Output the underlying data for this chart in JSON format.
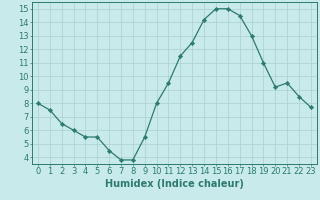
{
  "x": [
    0,
    1,
    2,
    3,
    4,
    5,
    6,
    7,
    8,
    9,
    10,
    11,
    12,
    13,
    14,
    15,
    16,
    17,
    18,
    19,
    20,
    21,
    22,
    23
  ],
  "y": [
    8.0,
    7.5,
    6.5,
    6.0,
    5.5,
    5.5,
    4.5,
    3.8,
    3.8,
    5.5,
    8.0,
    9.5,
    11.5,
    12.5,
    14.2,
    15.0,
    15.0,
    14.5,
    13.0,
    11.0,
    9.2,
    9.5,
    8.5,
    7.7
  ],
  "line_color": "#2d7a6e",
  "marker": "D",
  "marker_size": 2.2,
  "bg_color": "#c8eaea",
  "grid_color": "#b0d4d4",
  "axis_color": "#2d7a6e",
  "xlabel": "Humidex (Indice chaleur)",
  "xlim": [
    -0.5,
    23.5
  ],
  "ylim": [
    3.5,
    15.5
  ],
  "yticks": [
    4,
    5,
    6,
    7,
    8,
    9,
    10,
    11,
    12,
    13,
    14,
    15
  ],
  "xticks": [
    0,
    1,
    2,
    3,
    4,
    5,
    6,
    7,
    8,
    9,
    10,
    11,
    12,
    13,
    14,
    15,
    16,
    17,
    18,
    19,
    20,
    21,
    22,
    23
  ],
  "xlabel_fontsize": 7,
  "tick_fontsize": 6,
  "label_color": "#2d7a6e"
}
